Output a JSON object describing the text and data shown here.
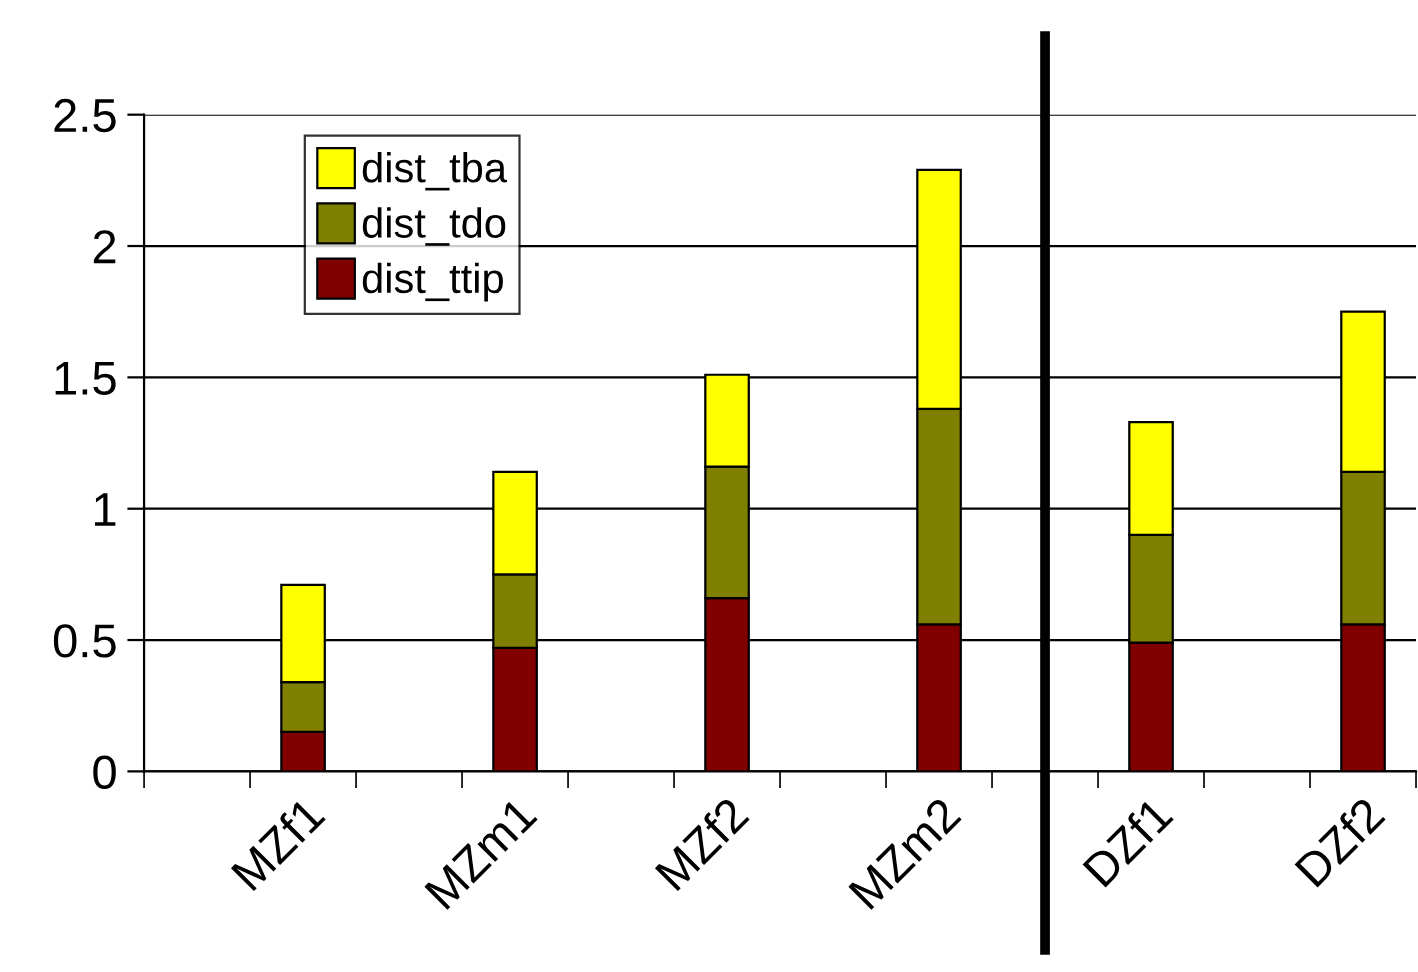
{
  "chart_data": {
    "type": "bar",
    "stacked": true,
    "categories": [
      null,
      "MZf1",
      null,
      "MZm1",
      null,
      "MZf2",
      null,
      "MZm2",
      null,
      "DZf1",
      null,
      "DZf2"
    ],
    "series": [
      {
        "name": "dist_ttip",
        "color": "#800000",
        "values": [
          null,
          0.15,
          null,
          0.47,
          null,
          0.66,
          null,
          0.56,
          null,
          0.49,
          null,
          0.56
        ]
      },
      {
        "name": "dist_tdo",
        "color": "#808000",
        "values": [
          null,
          0.19,
          null,
          0.28,
          null,
          0.5,
          null,
          0.82,
          null,
          0.41,
          null,
          0.58
        ]
      },
      {
        "name": "dist_tba",
        "color": "#ffff00",
        "values": [
          null,
          0.37,
          null,
          0.39,
          null,
          0.35,
          null,
          0.91,
          null,
          0.43,
          null,
          0.61
        ]
      }
    ],
    "ylim": [
      0,
      2.5
    ],
    "yticks": [
      0,
      0.5,
      1,
      1.5,
      2,
      2.5
    ],
    "grid": "y",
    "legend": "top left"
  }
}
